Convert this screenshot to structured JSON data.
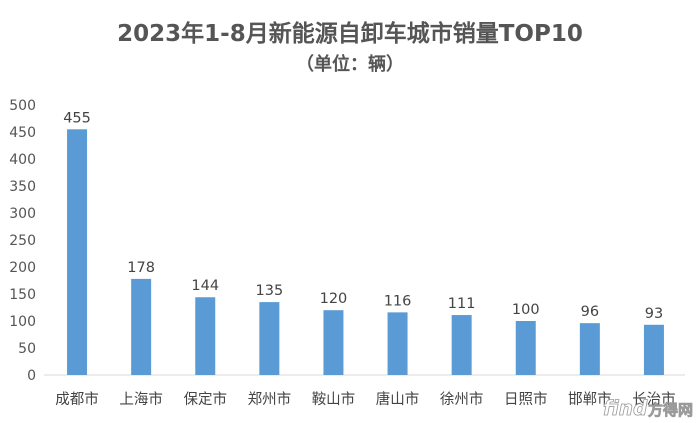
{
  "chart_data": {
    "type": "bar",
    "title": "2023年1-8月新能源自卸车城市销量TOP10",
    "subtitle": "（单位：辆）",
    "categories": [
      "成都市",
      "上海市",
      "保定市",
      "郑州市",
      "鞍山市",
      "唐山市",
      "徐州市",
      "日照市",
      "邯郸市",
      "长治市"
    ],
    "values": [
      455,
      178,
      144,
      135,
      120,
      116,
      111,
      100,
      96,
      93
    ],
    "ylim": [
      0,
      500
    ],
    "yticks": [
      0,
      50,
      100,
      150,
      200,
      250,
      300,
      350,
      400,
      450,
      500
    ],
    "grid": false,
    "legend": "none",
    "data_labels": true,
    "bar_color": "#5b9bd5"
  },
  "watermark": {
    "text": "方得网",
    "prefix": "find"
  }
}
